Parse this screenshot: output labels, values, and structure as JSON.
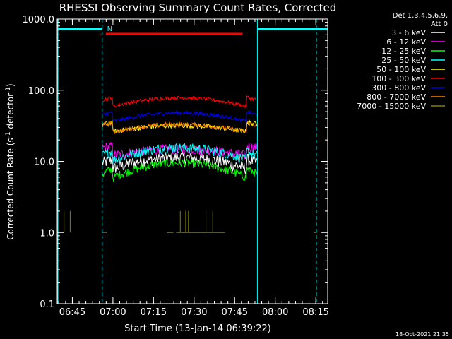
{
  "chart_data": {
    "type": "line",
    "title": "RHESSI Observing Summary Count Rates, Corrected",
    "xlabel": "Start Time (13-Jan-14 06:39:22)",
    "ylabel_main": "Corrected Count Rate (s",
    "ylabel_sup1": "-1",
    "ylabel_mid": " detector",
    "ylabel_sup2": "-1",
    "ylabel_end": ")",
    "y_scale": "log",
    "ylim": [
      0.1,
      1000
    ],
    "y_ticks": [
      {
        "value": 1000,
        "label": "1000.0"
      },
      {
        "value": 100,
        "label": "100.0"
      },
      {
        "value": 10,
        "label": "10.0"
      },
      {
        "value": 1,
        "label": "1.0"
      },
      {
        "value": 0.1,
        "label": "0.1"
      }
    ],
    "xlim_minutes": [
      0,
      100
    ],
    "x_ticks": [
      {
        "minute": 5.6,
        "label": "06:45"
      },
      {
        "minute": 20.6,
        "label": "07:00"
      },
      {
        "minute": 35.6,
        "label": "07:15"
      },
      {
        "minute": 50.6,
        "label": "07:30"
      },
      {
        "minute": 65.6,
        "label": "07:45"
      },
      {
        "minute": 80.6,
        "label": "08:00"
      },
      {
        "minute": 95.6,
        "label": "08:15"
      }
    ],
    "legend": {
      "position": "top-right",
      "header": [
        "Det 1,3,4,5,6,9,",
        "Att 0"
      ],
      "entries": [
        {
          "label": "3 - 6 keV",
          "color": "#ffffff"
        },
        {
          "label": "6 - 12 keV",
          "color": "#ff00ff"
        },
        {
          "label": "12 - 25 keV",
          "color": "#00ff00"
        },
        {
          "label": "25 - 50 keV",
          "color": "#00ffff"
        },
        {
          "label": "50 - 100 keV",
          "color": "#ffff00"
        },
        {
          "label": "100 - 300 keV",
          "color": "#ff0000"
        },
        {
          "label": "300 - 800 keV",
          "color": "#0000ff"
        },
        {
          "label": "800 - 7000 keV",
          "color": "#ff8000"
        },
        {
          "label": "7000 - 15000 keV",
          "color": "#808000"
        }
      ]
    },
    "series": [
      {
        "name": "3 - 6 keV",
        "color": "#ffffff",
        "base": 9,
        "amp": 0.22,
        "noise": 0.05,
        "night_value": 0
      },
      {
        "name": "6 - 12 keV",
        "color": "#ff00ff",
        "base": 13,
        "amp": 0.12,
        "noise": 0.04,
        "night_value": 0
      },
      {
        "name": "12 - 25 keV",
        "color": "#00ff00",
        "base": 7,
        "amp": 0.3,
        "noise": 0.035,
        "night_value": 0
      },
      {
        "name": "25 - 50 keV",
        "color": "#00ffff",
        "base": 12,
        "amp": 0.25,
        "noise": 0.04,
        "night_value": 0
      },
      {
        "name": "50 - 100 keV",
        "color": "#ffff00",
        "base": 28,
        "amp": 0.12,
        "noise": 0.02,
        "night_value": 0
      },
      {
        "name": "100 - 300 keV",
        "color": "#ff0000",
        "base": 65,
        "amp": 0.17,
        "noise": 0.015,
        "night_value": 0
      },
      {
        "name": "300 - 800 keV",
        "color": "#0000ff",
        "base": 40,
        "amp": 0.17,
        "noise": 0.015,
        "night_value": 0
      },
      {
        "name": "800 - 7000 keV",
        "color": "#ff8000",
        "base": 28,
        "amp": 0.15,
        "noise": 0.018,
        "night_value": 0
      },
      {
        "name": "7000 - 15000 keV",
        "color": "#808000",
        "base": 1,
        "amp": 0,
        "noise": 0,
        "night_value": 0
      }
    ],
    "annotations": {
      "night_bars": [
        {
          "start": 0,
          "end": 16.6,
          "color": "#00ffff"
        },
        {
          "start": 74,
          "end": 100,
          "color": "#00ffff"
        }
      ],
      "night_label": "N",
      "flare_bar": {
        "start": 18,
        "end": 68.5,
        "color": "#ff0000"
      },
      "flare_label": "F",
      "dashed_lines": [
        16.6,
        95.8
      ],
      "solid_lines": [
        0,
        74
      ]
    },
    "timestamp": "18-Oct-2021 21:35"
  }
}
